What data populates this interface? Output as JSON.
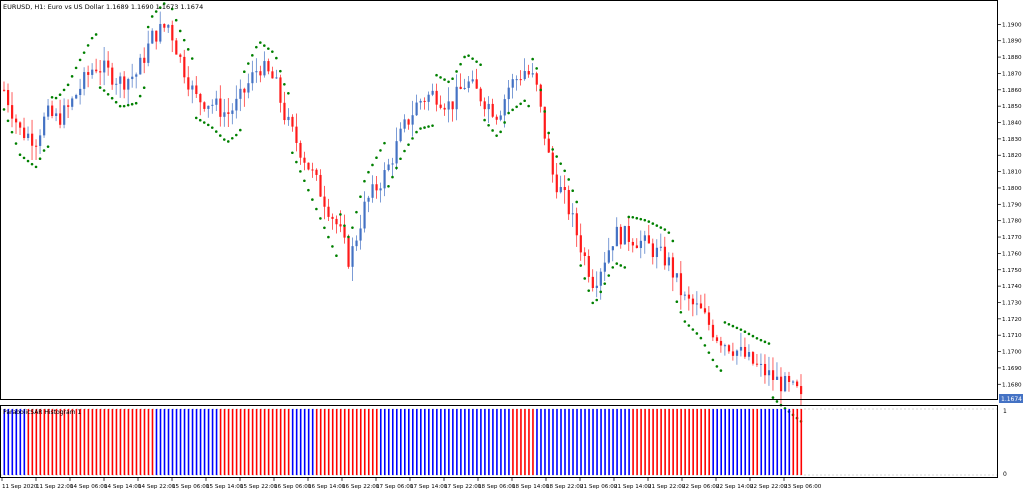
{
  "header": {
    "title": "EURUSD, H1:  Euro vs US Dollar  1.1689 1.1690 1.1673 1.1674"
  },
  "indicator": {
    "label": "ParabolicSAR Histogram 1",
    "scale_top": "1",
    "scale_bottom": "0"
  },
  "price_label": "1.1674",
  "colors": {
    "bull": "#4472c4",
    "bear": "#ff1a1a",
    "sar": "#008000",
    "hist_up": "#0000ff",
    "hist_down": "#ff0000",
    "grid": "#c8c8c8",
    "text": "#000000"
  },
  "chart_data": [
    {
      "type": "candlestick",
      "title": "EURUSD, H1",
      "ylim": [
        1.1671,
        1.191
      ],
      "y_ticks": [
        "1.1900",
        "1.1890",
        "1.1880",
        "1.1870",
        "1.1860",
        "1.1850",
        "1.1840",
        "1.1830",
        "1.1820",
        "1.1810",
        "1.1800",
        "1.1790",
        "1.1780",
        "1.1770",
        "1.1760",
        "1.1750",
        "1.1740",
        "1.1730",
        "1.1720",
        "1.1710",
        "1.1700",
        "1.1690",
        "1.1680"
      ],
      "x_ticks": [
        "11 Sep 2020",
        "11 Sep 22:00",
        "14 Sep 06:00",
        "14 Sep 14:00",
        "14 Sep 22:00",
        "15 Sep 06:00",
        "15 Sep 14:00",
        "15 Sep 22:00",
        "16 Sep 06:00",
        "16 Sep 14:00",
        "16 Sep 22:00",
        "17 Sep 06:00",
        "17 Sep 14:00",
        "17 Sep 22:00",
        "18 Sep 06:00",
        "18 Sep 14:00",
        "18 Sep 22:00",
        "21 Sep 06:00",
        "21 Sep 14:00",
        "21 Sep 22:00",
        "22 Sep 06:00",
        "22 Sep 14:00",
        "22 Sep 22:00",
        "23 Sep 06:00"
      ],
      "last_price": 1.1674,
      "bar_count": 200
    },
    {
      "type": "bar",
      "title": "ParabolicSAR Histogram 1",
      "ylim": [
        0,
        1
      ],
      "segments": [
        {
          "dir": "up",
          "count": 6
        },
        {
          "dir": "down",
          "count": 32
        },
        {
          "dir": "up",
          "count": 16
        },
        {
          "dir": "down",
          "count": 18
        },
        {
          "dir": "up",
          "count": 6
        },
        {
          "dir": "down",
          "count": 16
        },
        {
          "dir": "up",
          "count": 33
        },
        {
          "dir": "down",
          "count": 6
        },
        {
          "dir": "up",
          "count": 24
        },
        {
          "dir": "down",
          "count": 20
        },
        {
          "dir": "up",
          "count": 10
        },
        {
          "dir": "down",
          "count": 2
        },
        {
          "dir": "up",
          "count": 8
        },
        {
          "dir": "down",
          "count": 3
        }
      ]
    }
  ]
}
